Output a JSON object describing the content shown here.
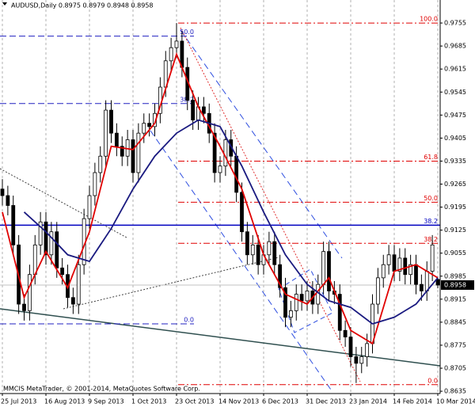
{
  "chart_data": {
    "type": "candlestick",
    "title": "AUDUSD,Daily  0.8975 0.8979 0.8948 0.8958",
    "footer": "MMCIS MetaTrader, © 2001-2014, MetaQuotes Software Corp.",
    "categories": [
      "25 Jul 2013",
      null,
      null,
      null,
      null,
      null,
      null,
      null,
      "16 Aug 2013",
      null,
      null,
      null,
      null,
      null,
      null,
      null,
      "9 Sep 2013",
      null,
      null,
      null,
      null,
      null,
      null,
      null,
      "1 Oct 2013",
      null,
      null,
      null,
      null,
      null,
      null,
      null,
      "23 Oct 2013",
      null,
      null,
      null,
      null,
      null,
      null,
      null,
      "14 Nov 2013",
      null,
      null,
      null,
      null,
      null,
      null,
      null,
      "6 Dec 2013",
      null,
      null,
      null,
      null,
      null,
      null,
      null,
      "31 Dec 2013",
      null,
      null,
      null,
      null,
      null,
      null,
      null,
      "23 Jan 2014",
      null,
      null,
      null,
      null,
      null,
      null,
      null,
      "14 Feb 2014",
      null,
      null,
      null,
      null,
      null,
      null,
      null,
      "10 Mar 2014"
    ],
    "open": [
      0.925,
      0.923,
      0.92,
      0.908,
      0.89,
      0.888,
      0.899,
      0.908,
      0.915,
      0.905,
      0.912,
      0.901,
      0.899,
      0.892,
      0.89,
      0.902,
      0.916,
      0.923,
      0.93,
      0.935,
      0.949,
      0.942,
      0.938,
      0.935,
      0.94,
      0.93,
      0.942,
      0.945,
      0.944,
      0.948,
      0.956,
      0.964,
      0.968,
      0.97,
      0.962,
      0.952,
      0.946,
      0.95,
      0.948,
      0.942,
      0.93,
      0.932,
      0.94,
      0.935,
      0.924,
      0.912,
      0.905,
      0.908,
      0.902,
      0.905,
      0.909,
      0.902,
      0.895,
      0.886,
      0.888,
      0.893,
      0.891,
      0.894,
      0.89,
      0.896,
      0.906,
      0.894,
      0.893,
      0.882,
      0.88,
      0.874,
      0.872,
      0.874,
      0.878,
      0.89,
      0.898,
      0.902,
      0.905,
      0.9,
      0.904,
      0.899,
      0.902,
      0.896,
      0.894,
      0.9,
      0.8975
    ],
    "high": [
      0.928,
      0.926,
      0.923,
      0.911,
      0.893,
      0.902,
      0.911,
      0.918,
      0.918,
      0.915,
      0.915,
      0.904,
      0.902,
      0.895,
      0.905,
      0.919,
      0.926,
      0.933,
      0.938,
      0.952,
      0.952,
      0.945,
      0.941,
      0.943,
      0.943,
      0.945,
      0.948,
      0.948,
      0.951,
      0.959,
      0.967,
      0.971,
      0.9755,
      0.973,
      0.965,
      0.955,
      0.953,
      0.953,
      0.951,
      0.945,
      0.935,
      0.943,
      0.943,
      0.938,
      0.927,
      0.915,
      0.911,
      0.911,
      0.908,
      0.912,
      0.912,
      0.905,
      0.898,
      0.891,
      0.896,
      0.896,
      0.897,
      0.897,
      0.899,
      0.909,
      0.909,
      0.897,
      0.896,
      0.885,
      0.883,
      0.877,
      0.877,
      0.881,
      0.893,
      0.901,
      0.905,
      0.908,
      0.908,
      0.907,
      0.907,
      0.905,
      0.905,
      0.899,
      0.903,
      0.911,
      0.8979
    ],
    "low": [
      0.92,
      0.917,
      0.905,
      0.887,
      0.885,
      0.885,
      0.896,
      0.905,
      0.902,
      0.902,
      0.898,
      0.896,
      0.889,
      0.887,
      0.887,
      0.899,
      0.913,
      0.92,
      0.927,
      0.932,
      0.939,
      0.935,
      0.932,
      0.932,
      0.927,
      0.927,
      0.939,
      0.941,
      0.941,
      0.945,
      0.953,
      0.961,
      0.965,
      0.959,
      0.949,
      0.943,
      0.943,
      0.945,
      0.939,
      0.927,
      0.927,
      0.929,
      0.932,
      0.921,
      0.909,
      0.902,
      0.902,
      0.899,
      0.899,
      0.902,
      0.899,
      0.892,
      0.883,
      0.883,
      0.885,
      0.888,
      0.888,
      0.887,
      0.887,
      0.893,
      0.891,
      0.89,
      0.879,
      0.877,
      0.871,
      0.866,
      0.869,
      0.871,
      0.875,
      0.887,
      0.895,
      0.899,
      0.897,
      0.897,
      0.896,
      0.896,
      0.893,
      0.891,
      0.891,
      0.897,
      0.8948
    ],
    "close": [
      0.923,
      0.92,
      0.908,
      0.89,
      0.888,
      0.899,
      0.908,
      0.915,
      0.905,
      0.912,
      0.901,
      0.899,
      0.892,
      0.89,
      0.902,
      0.916,
      0.923,
      0.93,
      0.935,
      0.949,
      0.942,
      0.938,
      0.935,
      0.94,
      0.93,
      0.942,
      0.945,
      0.944,
      0.948,
      0.956,
      0.964,
      0.968,
      0.97,
      0.962,
      0.952,
      0.946,
      0.95,
      0.948,
      0.942,
      0.93,
      0.932,
      0.94,
      0.935,
      0.924,
      0.912,
      0.905,
      0.908,
      0.902,
      0.905,
      0.909,
      0.902,
      0.895,
      0.886,
      0.888,
      0.893,
      0.891,
      0.894,
      0.89,
      0.896,
      0.906,
      0.894,
      0.893,
      0.882,
      0.88,
      0.874,
      0.872,
      0.874,
      0.878,
      0.89,
      0.898,
      0.902,
      0.905,
      0.9,
      0.904,
      0.899,
      0.902,
      0.896,
      0.894,
      0.9,
      0.908,
      0.8958
    ],
    "lines": [
      {
        "color": "#e00000",
        "x": [
          0,
          4,
          8,
          12,
          16,
          20,
          24,
          28,
          32,
          36,
          40,
          44,
          48,
          52,
          56,
          60,
          64,
          68,
          72,
          76,
          80
        ],
        "values": [
          0.918,
          0.892,
          0.906,
          0.895,
          0.912,
          0.938,
          0.937,
          0.945,
          0.966,
          0.95,
          0.938,
          0.925,
          0.905,
          0.893,
          0.89,
          0.898,
          0.882,
          0.878,
          0.9,
          0.902,
          0.898
        ]
      },
      {
        "color": "#1a1a80",
        "x": [
          4,
          8,
          12,
          16,
          20,
          24,
          28,
          32,
          36,
          40,
          44,
          48,
          52,
          56,
          60,
          64,
          68,
          72,
          76,
          80
        ],
        "values": [
          0.918,
          0.912,
          0.905,
          0.903,
          0.913,
          0.925,
          0.935,
          0.942,
          0.946,
          0.944,
          0.932,
          0.918,
          0.905,
          0.896,
          0.891,
          0.889,
          0.884,
          0.886,
          0.89,
          0.898
        ]
      }
    ],
    "red_fibo": {
      "color": "#e00000",
      "levels": [
        {
          "label": "100.0",
          "value": 0.9755
        },
        {
          "label": "61.8",
          "value": 0.9335
        },
        {
          "label": "50.0",
          "value": 0.921
        },
        {
          "label": "38.2",
          "value": 0.9085
        },
        {
          "label": "0.0",
          "value": 0.8655
        }
      ]
    },
    "blue_fibo": {
      "color": "#2020c0",
      "levels": [
        {
          "label": "50.0",
          "value": 0.9715
        },
        {
          "label": "38.2",
          "value": 0.951
        },
        {
          "label": "0.0",
          "value": 0.884
        }
      ]
    },
    "blue_level": {
      "color": "#0000c0",
      "label": "38.2",
      "value": 0.914
    },
    "current_price": 0.8958,
    "ylim": [
      0.8628,
      0.9825
    ],
    "yticks": [
      0.9755,
      0.9685,
      0.9615,
      0.9545,
      0.9475,
      0.9405,
      0.9335,
      0.9265,
      0.9195,
      0.9125,
      0.9055,
      0.8985,
      0.8915,
      0.8845,
      0.8775,
      0.8705,
      0.8635
    ],
    "grid": true
  }
}
